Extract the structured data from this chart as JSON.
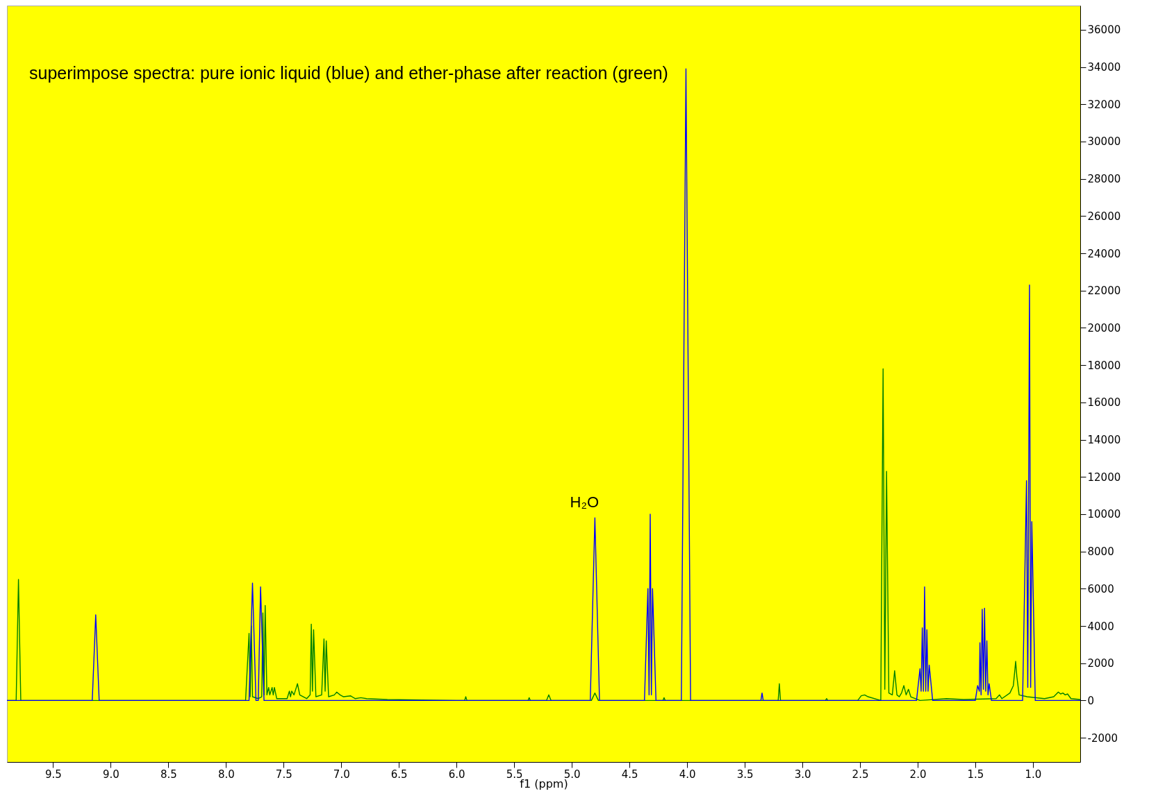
{
  "chart_data": {
    "type": "line",
    "xlabel": "f1 (ppm)",
    "annotations": [
      "superimpose spectra: pure ionic liquid (blue) and ether-phase after reaction (green)",
      {
        "text": "H₂O",
        "x": 4.8,
        "y": 9800
      }
    ],
    "xlim": [
      9.9,
      0.59
    ],
    "xticks": [
      {
        "value": 9.5,
        "label": "9.5"
      },
      {
        "value": 9,
        "label": "9.0"
      },
      {
        "value": 8.5,
        "label": "8.5"
      },
      {
        "value": 8,
        "label": "8.0"
      },
      {
        "value": 7.5,
        "label": "7.5"
      },
      {
        "value": 7,
        "label": "7.0"
      },
      {
        "value": 6.5,
        "label": "6.5"
      },
      {
        "value": 6,
        "label": "6.0"
      },
      {
        "value": 5.5,
        "label": "5.5"
      },
      {
        "value": 5,
        "label": "5.0"
      },
      {
        "value": 4.5,
        "label": "4.5"
      },
      {
        "value": 4,
        "label": "4.0"
      },
      {
        "value": 3.5,
        "label": "3.5"
      },
      {
        "value": 3,
        "label": "3.0"
      },
      {
        "value": 2.5,
        "label": "2.5"
      },
      {
        "value": 2,
        "label": "2.0"
      },
      {
        "value": 1.5,
        "label": "1.5"
      },
      {
        "value": 1,
        "label": "1.0"
      }
    ],
    "ylim": [
      -3300,
      37300
    ],
    "yticks": [
      -2000,
      0,
      2000,
      4000,
      6000,
      8000,
      10000,
      12000,
      14000,
      16000,
      18000,
      20000,
      22000,
      24000,
      26000,
      28000,
      30000,
      32000,
      34000,
      36000
    ],
    "grid": false,
    "legend": false,
    "line_style": "solid",
    "marker": "none",
    "series": [
      {
        "color": "#008000",
        "x": [
          9.9,
          9.82,
          9.8,
          9.78,
          9.0,
          7.83,
          7.8,
          7.79,
          7.78,
          7.77,
          7.72,
          7.69,
          7.68,
          7.67,
          7.66,
          7.645,
          7.63,
          7.62,
          7.6,
          7.59,
          7.58,
          7.56,
          7.47,
          7.45,
          7.44,
          7.43,
          7.41,
          7.39,
          7.38,
          7.36,
          7.3,
          7.27,
          7.26,
          7.25,
          7.24,
          7.22,
          7.17,
          7.15,
          7.14,
          7.13,
          7.11,
          7.06,
          7.04,
          7.01,
          6.98,
          6.92,
          6.88,
          6.83,
          6.78,
          6.6,
          6.0,
          5.93,
          5.92,
          5.91,
          5.38,
          5.37,
          5.36,
          5.22,
          5.2,
          5.18,
          4.83,
          4.8,
          4.77,
          4.21,
          4.2,
          4.19,
          3.5,
          3.21,
          3.2,
          3.19,
          2.8,
          2.79,
          2.78,
          2.52,
          2.49,
          2.46,
          2.43,
          2.32,
          2.3,
          2.285,
          2.27,
          2.25,
          2.22,
          2.2,
          2.18,
          2.16,
          2.14,
          2.12,
          2.1,
          2.08,
          2.06,
          1.98,
          1.75,
          1.6,
          1.32,
          1.29,
          1.27,
          1.2,
          1.17,
          1.15,
          1.14,
          1.12,
          1.05,
          0.9,
          0.82,
          0.78,
          0.76,
          0.74,
          0.72,
          0.7,
          0.67,
          0.59
        ],
        "values": [
          0,
          0,
          6500,
          0,
          0,
          0,
          3600,
          200,
          4000,
          200,
          100,
          200,
          4700,
          300,
          5100,
          300,
          700,
          300,
          700,
          300,
          700,
          100,
          100,
          500,
          200,
          500,
          300,
          700,
          900,
          300,
          100,
          300,
          4100,
          500,
          3800,
          200,
          300,
          3300,
          500,
          3200,
          200,
          300,
          450,
          300,
          200,
          250,
          100,
          150,
          100,
          50,
          0,
          0,
          200,
          0,
          0,
          150,
          0,
          0,
          300,
          0,
          0,
          400,
          0,
          0,
          150,
          0,
          0,
          0,
          900,
          0,
          0,
          100,
          0,
          0,
          250,
          300,
          200,
          0,
          17800,
          600,
          12300,
          400,
          300,
          1600,
          300,
          200,
          400,
          800,
          300,
          600,
          200,
          0,
          100,
          50,
          100,
          300,
          100,
          400,
          800,
          2100,
          1300,
          300,
          200,
          100,
          200,
          450,
          350,
          400,
          300,
          350,
          100,
          50
        ]
      },
      {
        "color": "#0000ff",
        "x": [
          9.9,
          9.16,
          9.13,
          9.1,
          7.8,
          7.77,
          7.74,
          7.72,
          7.7,
          7.67,
          4.84,
          4.8,
          4.76,
          4.37,
          4.34,
          4.33,
          4.32,
          4.31,
          4.3,
          4.27,
          4.05,
          4.01,
          3.97,
          3.36,
          3.35,
          3.34,
          2.01,
          1.98,
          1.97,
          1.96,
          1.95,
          1.94,
          1.93,
          1.92,
          1.91,
          1.9,
          1.87,
          1.5,
          1.48,
          1.465,
          1.46,
          1.45,
          1.44,
          1.43,
          1.42,
          1.41,
          1.4,
          1.39,
          1.38,
          1.36,
          1.09,
          1.056,
          1.045,
          1.03,
          1.02,
          1.01,
          0.98,
          0.59
        ],
        "values": [
          0,
          0,
          4600,
          0,
          0,
          6300,
          0,
          0,
          6100,
          0,
          0,
          9800,
          0,
          0,
          6000,
          300,
          10000,
          300,
          6000,
          0,
          0,
          33900,
          0,
          0,
          400,
          0,
          0,
          1700,
          500,
          3900,
          500,
          6100,
          500,
          3800,
          500,
          1900,
          0,
          0,
          800,
          500,
          3100,
          300,
          4900,
          600,
          4950,
          500,
          3200,
          300,
          900,
          0,
          0,
          11800,
          700,
          22300,
          700,
          9600,
          0,
          0
        ]
      }
    ]
  }
}
